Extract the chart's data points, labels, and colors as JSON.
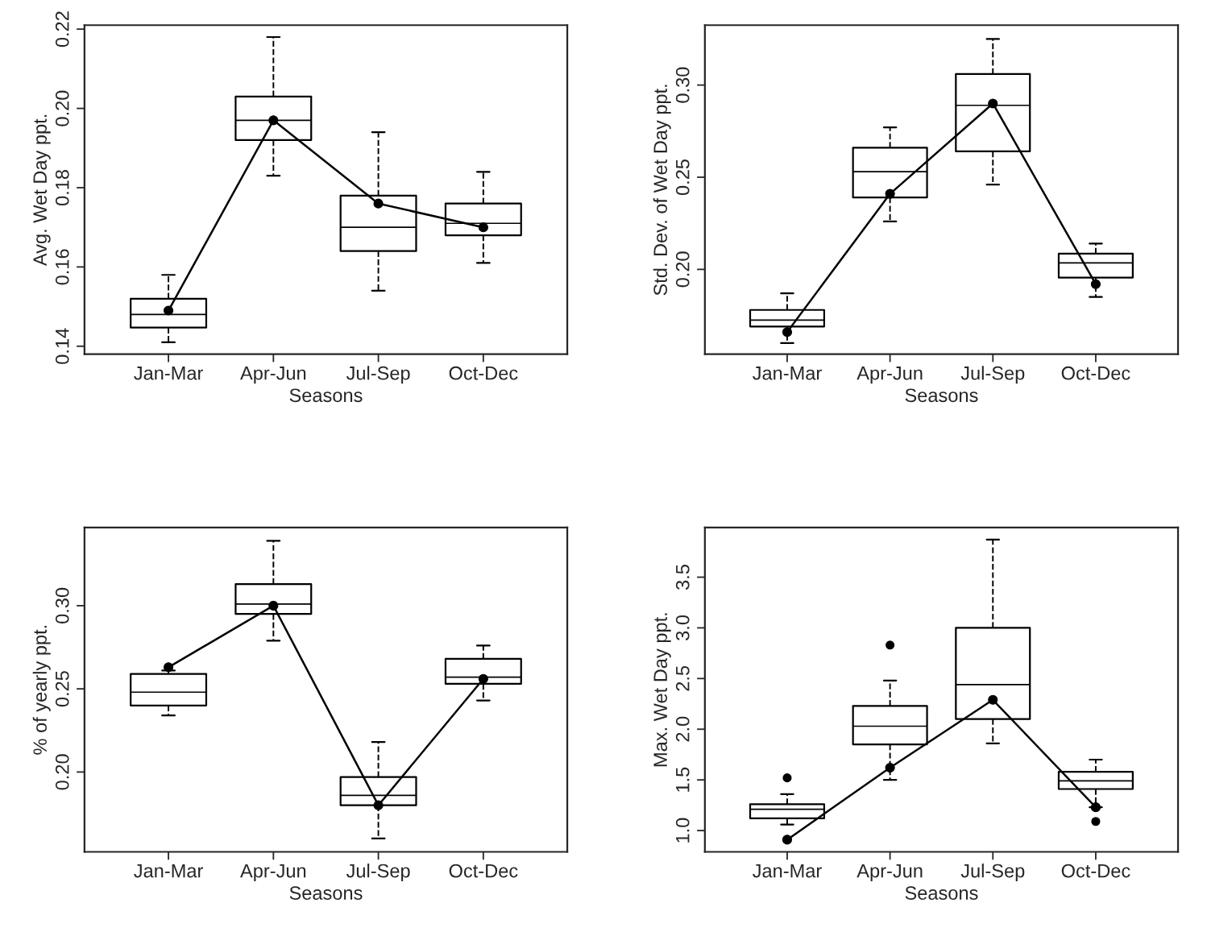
{
  "chart_data": [
    {
      "type": "box",
      "categories": [
        "Jan-Mar",
        "Apr-Jun",
        "Jul-Sep",
        "Oct-Dec"
      ],
      "xlabel": "Seasons",
      "ylabel": "Avg. Wet Day ppt.",
      "ylim": [
        0.138,
        0.221
      ],
      "yticks": [
        0.14,
        0.16,
        0.18,
        {
          "value": 0.2,
          "label": "0.20"
        },
        0.22
      ],
      "grid": false,
      "boxes": [
        {
          "low": 0.141,
          "q1": 0.1447,
          "median": 0.148,
          "q3": 0.152,
          "high": 0.158
        },
        {
          "low": 0.183,
          "q1": 0.192,
          "median": 0.197,
          "q3": 0.203,
          "high": 0.218
        },
        {
          "low": 0.154,
          "q1": 0.164,
          "median": 0.17,
          "q3": 0.178,
          "high": 0.194
        },
        {
          "low": 0.161,
          "q1": 0.168,
          "median": 0.171,
          "q3": 0.176,
          "high": 0.184
        }
      ],
      "series": [
        {
          "type": "line",
          "color": "#000000",
          "marker": "circle",
          "values": [
            0.149,
            0.197,
            0.176,
            0.17
          ]
        }
      ]
    },
    {
      "type": "box",
      "categories": [
        "Jan-Mar",
        "Apr-Jun",
        "Jul-Sep",
        "Oct-Dec"
      ],
      "xlabel": "Seasons",
      "ylabel": "Std. Dev. of Wet Day ppt.",
      "ylim": [
        0.154,
        0.3325
      ],
      "yticks": [
        {
          "value": 0.2,
          "label": "0.20"
        },
        0.25,
        {
          "value": 0.3,
          "label": "0.30"
        }
      ],
      "grid": false,
      "boxes": [
        {
          "low": 0.16,
          "q1": 0.169,
          "median": 0.1725,
          "q3": 0.178,
          "high": 0.187
        },
        {
          "low": 0.226,
          "q1": 0.239,
          "median": 0.253,
          "q3": 0.266,
          "high": 0.277
        },
        {
          "low": 0.246,
          "q1": 0.264,
          "median": 0.289,
          "q3": 0.306,
          "high": 0.325
        },
        {
          "low": 0.185,
          "q1": 0.1955,
          "median": 0.2035,
          "q3": 0.2085,
          "high": 0.214
        }
      ],
      "series": [
        {
          "type": "line",
          "color": "#000000",
          "marker": "circle",
          "values": [
            0.166,
            0.241,
            0.29,
            0.192
          ]
        }
      ]
    },
    {
      "type": "box",
      "categories": [
        "Jan-Mar",
        "Apr-Jun",
        "Jul-Sep",
        "Oct-Dec"
      ],
      "xlabel": "Seasons",
      "ylabel": "% of yearly ppt.",
      "ylim": [
        0.152,
        0.347
      ],
      "yticks": [
        {
          "value": 0.2,
          "label": "0.20"
        },
        0.25,
        {
          "value": 0.3,
          "label": "0.30"
        }
      ],
      "grid": false,
      "boxes": [
        {
          "low": 0.234,
          "q1": 0.24,
          "median": 0.248,
          "q3": 0.259,
          "high": 0.261
        },
        {
          "low": 0.279,
          "q1": 0.295,
          "median": 0.301,
          "q3": 0.313,
          "high": 0.339
        },
        {
          "low": 0.16,
          "q1": 0.18,
          "median": 0.186,
          "q3": 0.197,
          "high": 0.218
        },
        {
          "low": 0.243,
          "q1": 0.253,
          "median": 0.257,
          "q3": 0.268,
          "high": 0.276
        }
      ],
      "series": [
        {
          "type": "line",
          "color": "#000000",
          "marker": "circle",
          "values": [
            0.263,
            0.3,
            0.18,
            0.256
          ]
        }
      ]
    },
    {
      "type": "box",
      "categories": [
        "Jan-Mar",
        "Apr-Jun",
        "Jul-Sep",
        "Oct-Dec"
      ],
      "xlabel": "Seasons",
      "ylabel": "Max. Wet Day ppt.",
      "ylim": [
        0.79,
        3.99
      ],
      "yticks": [
        {
          "value": 1,
          "label": "1.0"
        },
        1.5,
        {
          "value": 2,
          "label": "2.0"
        },
        2.5,
        {
          "value": 3,
          "label": "3.0"
        },
        3.5
      ],
      "grid": false,
      "boxes": [
        {
          "low": 1.06,
          "q1": 1.12,
          "median": 1.21,
          "q3": 1.26,
          "high": 1.36,
          "outliers": [
            1.52
          ]
        },
        {
          "low": 1.5,
          "q1": 1.85,
          "median": 2.03,
          "q3": 2.23,
          "high": 2.48,
          "outliers": [
            2.83
          ]
        },
        {
          "low": 1.86,
          "q1": 2.1,
          "median": 2.44,
          "q3": 3.0,
          "high": 3.87
        },
        {
          "low": 1.23,
          "q1": 1.41,
          "median": 1.49,
          "q3": 1.58,
          "high": 1.7,
          "outliers": [
            1.09
          ]
        }
      ],
      "series": [
        {
          "type": "line",
          "color": "#000000",
          "marker": "circle",
          "values": [
            0.91,
            1.62,
            2.29,
            1.23
          ]
        }
      ]
    }
  ]
}
